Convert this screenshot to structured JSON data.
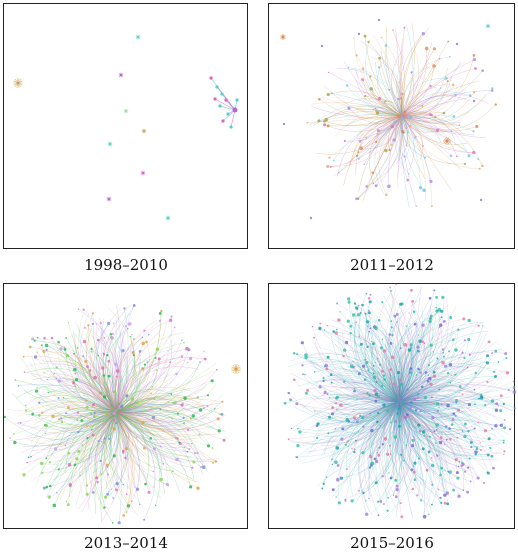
{
  "panels": [
    {
      "caption": "1998–2010",
      "palette": [
        "#5ad0c8",
        "#e060d0",
        "#9be0a0",
        "#c9a35a",
        "#b06ad8"
      ],
      "density": "sparse"
    },
    {
      "caption": "2011–2012",
      "palette": [
        "#e08a48",
        "#e070c8",
        "#b0a040",
        "#a88ae0",
        "#e6b080",
        "#70c8e0"
      ],
      "density": "medium"
    },
    {
      "caption": "2013–2014",
      "palette": [
        "#22b84a",
        "#e06ab0",
        "#7a8ee0",
        "#8bd05a",
        "#c99ae8",
        "#e0a040"
      ],
      "density": "dense"
    },
    {
      "caption": "2015–2016",
      "palette": [
        "#14a0a8",
        "#6a6ad8",
        "#3bb8b0",
        "#a07ae0",
        "#e07aa0",
        "#30c0a0"
      ],
      "density": "very-dense"
    }
  ]
}
